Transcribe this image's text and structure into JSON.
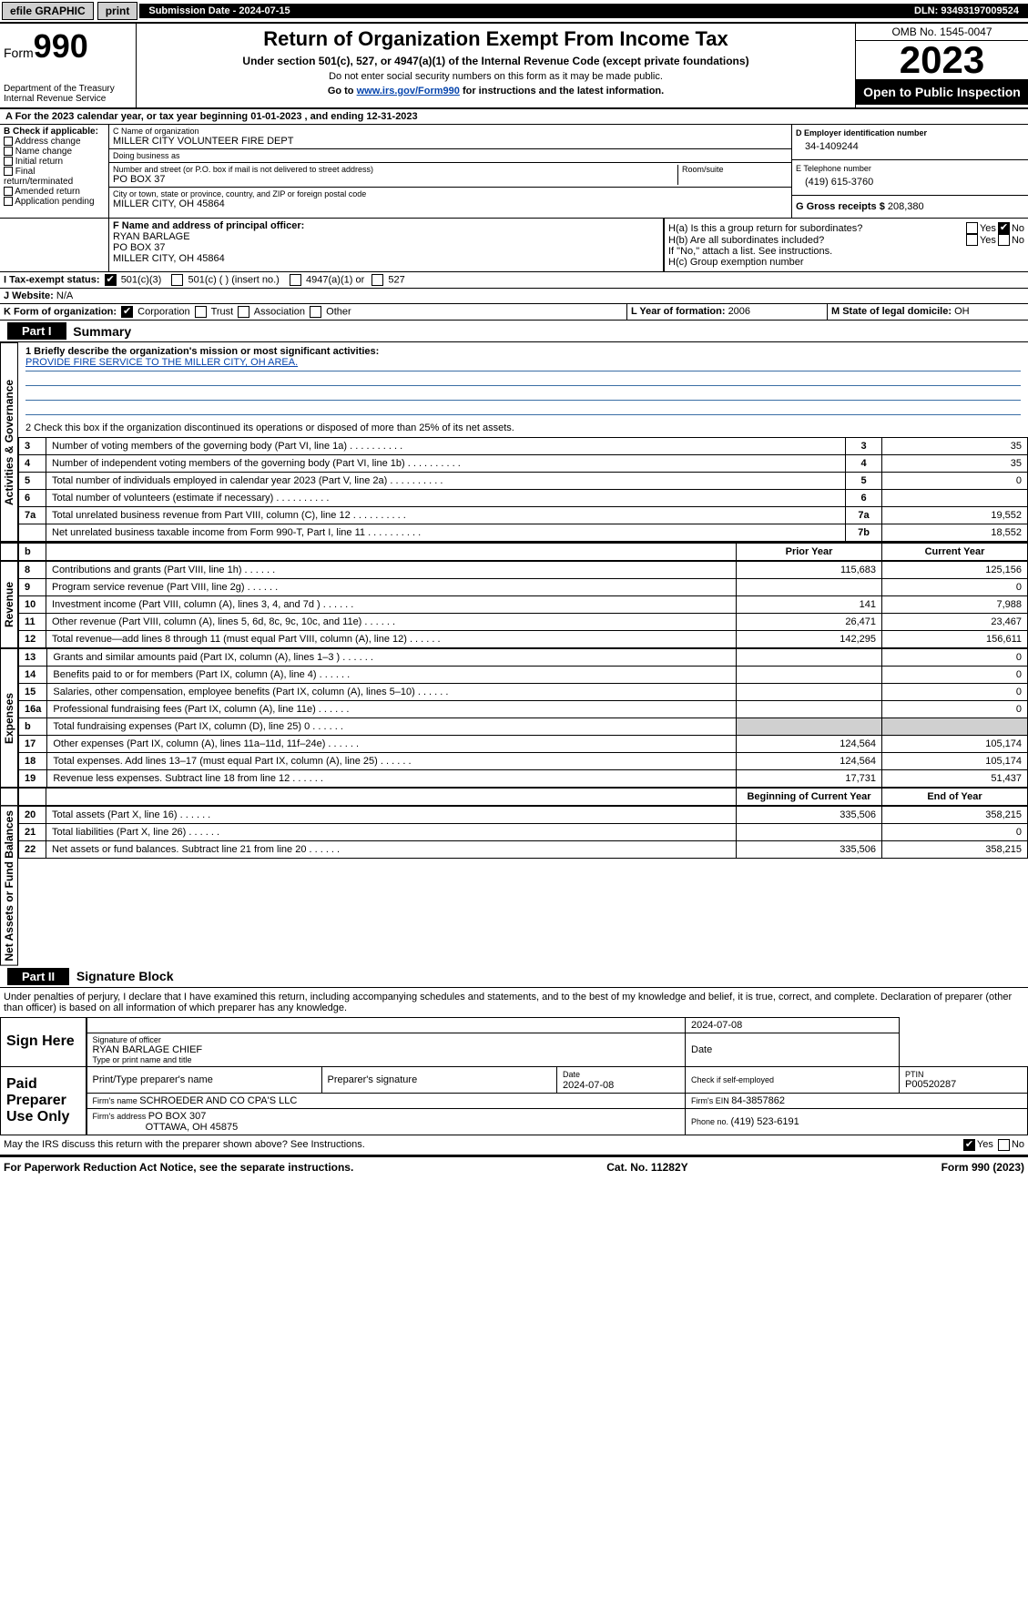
{
  "topbar": {
    "efile": "efile GRAPHIC",
    "print": "print",
    "submission_label": "Submission Date - ",
    "submission_date": "2024-07-15",
    "dln_label": "DLN: ",
    "dln": "93493197009524"
  },
  "header": {
    "form_prefix": "Form",
    "form_number": "990",
    "dept": "Department of the Treasury Internal Revenue Service",
    "title": "Return of Organization Exempt From Income Tax",
    "subtitle": "Under section 501(c), 527, or 4947(a)(1) of the Internal Revenue Code (except private foundations)",
    "note1": "Do not enter social security numbers on this form as it may be made public.",
    "note2_prefix": "Go to ",
    "note2_url": "www.irs.gov/Form990",
    "note2_suffix": " for instructions and the latest information.",
    "omb": "OMB No. 1545-0047",
    "year": "2023",
    "open": "Open to Public Inspection"
  },
  "section_a": {
    "text": "A For the 2023 calendar year, or tax year beginning ",
    "begin": "01-01-2023",
    "mid": " , and ending ",
    "end": "12-31-2023"
  },
  "box_b": {
    "label": "B Check if applicable:",
    "items": [
      "Address change",
      "Name change",
      "Initial return",
      "Final return/terminated",
      "Amended return",
      "Application pending"
    ]
  },
  "box_c": {
    "name_label": "C Name of organization",
    "name": "MILLER CITY VOLUNTEER FIRE DEPT",
    "dba_label": "Doing business as",
    "dba": "",
    "street_label": "Number and street (or P.O. box if mail is not delivered to street address)",
    "street": "PO BOX 37",
    "room_label": "Room/suite",
    "city_label": "City or town, state or province, country, and ZIP or foreign postal code",
    "city": "MILLER CITY, OH  45864"
  },
  "box_d": {
    "label": "D Employer identification number",
    "value": "34-1409244"
  },
  "box_e": {
    "label": "E Telephone number",
    "value": "(419) 615-3760"
  },
  "box_g": {
    "label": "G Gross receipts $ ",
    "value": "208,380"
  },
  "box_f": {
    "label": "F  Name and address of principal officer:",
    "name": "RYAN BARLAGE",
    "addr1": "PO BOX 37",
    "addr2": "MILLER CITY, OH  45864"
  },
  "box_h": {
    "ha_label": "H(a)  Is this a group return for subordinates?",
    "ha_yes": "Yes",
    "ha_no": "No",
    "ha_checked": "No",
    "hb_label": "H(b)  Are all subordinates included?",
    "hb_yes": "Yes",
    "hb_no": "No",
    "hb_note": "If \"No,\" attach a list. See instructions.",
    "hc_label": "H(c)  Group exemption number "
  },
  "box_i": {
    "label": "I   Tax-exempt status:",
    "opt1": "501(c)(3)",
    "opt1_checked": true,
    "opt2": "501(c) (  ) (insert no.)",
    "opt3": "4947(a)(1) or",
    "opt4": "527"
  },
  "box_j": {
    "label": "J   Website: ",
    "value": "N/A"
  },
  "box_k": {
    "label": "K Form of organization:",
    "opt1": "Corporation",
    "opt1_checked": true,
    "opt2": "Trust",
    "opt3": "Association",
    "opt4": "Other"
  },
  "box_l": {
    "label": "L Year of formation: ",
    "value": "2006"
  },
  "box_m": {
    "label": "M State of legal domicile: ",
    "value": "OH"
  },
  "part1": {
    "tag": "Part I",
    "title": "Summary",
    "q1_label": "1   Briefly describe the organization's mission or most significant activities:",
    "q1_value": "PROVIDE FIRE SERVICE TO THE MILLER CITY, OH AREA.",
    "q2": "2   Check this box      if the organization discontinued its operations or disposed of more than 25% of its net assets.",
    "sidebars": {
      "gov": "Activities & Governance",
      "rev": "Revenue",
      "exp": "Expenses",
      "net": "Net Assets or Fund Balances"
    },
    "header_b": "b",
    "header_prior": "Prior Year",
    "header_current": "Current Year",
    "header_boy": "Beginning of Current Year",
    "header_eoy": "End of Year",
    "rows_gov": [
      {
        "n": "3",
        "label": "Number of voting members of the governing body (Part VI, line 1a)",
        "box": "3",
        "val": "35"
      },
      {
        "n": "4",
        "label": "Number of independent voting members of the governing body (Part VI, line 1b)",
        "box": "4",
        "val": "35"
      },
      {
        "n": "5",
        "label": "Total number of individuals employed in calendar year 2023 (Part V, line 2a)",
        "box": "5",
        "val": "0"
      },
      {
        "n": "6",
        "label": "Total number of volunteers (estimate if necessary)",
        "box": "6",
        "val": ""
      },
      {
        "n": "7a",
        "label": "Total unrelated business revenue from Part VIII, column (C), line 12",
        "box": "7a",
        "val": "19,552"
      },
      {
        "n": "",
        "label": "Net unrelated business taxable income from Form 990-T, Part I, line 11",
        "box": "7b",
        "val": "18,552"
      }
    ],
    "rows_rev": [
      {
        "n": "8",
        "label": "Contributions and grants (Part VIII, line 1h)",
        "prior": "115,683",
        "curr": "125,156"
      },
      {
        "n": "9",
        "label": "Program service revenue (Part VIII, line 2g)",
        "prior": "",
        "curr": "0"
      },
      {
        "n": "10",
        "label": "Investment income (Part VIII, column (A), lines 3, 4, and 7d )",
        "prior": "141",
        "curr": "7,988"
      },
      {
        "n": "11",
        "label": "Other revenue (Part VIII, column (A), lines 5, 6d, 8c, 9c, 10c, and 11e)",
        "prior": "26,471",
        "curr": "23,467"
      },
      {
        "n": "12",
        "label": "Total revenue—add lines 8 through 11 (must equal Part VIII, column (A), line 12)",
        "prior": "142,295",
        "curr": "156,611"
      }
    ],
    "rows_exp": [
      {
        "n": "13",
        "label": "Grants and similar amounts paid (Part IX, column (A), lines 1–3 )",
        "prior": "",
        "curr": "0"
      },
      {
        "n": "14",
        "label": "Benefits paid to or for members (Part IX, column (A), line 4)",
        "prior": "",
        "curr": "0"
      },
      {
        "n": "15",
        "label": "Salaries, other compensation, employee benefits (Part IX, column (A), lines 5–10)",
        "prior": "",
        "curr": "0"
      },
      {
        "n": "16a",
        "label": "Professional fundraising fees (Part IX, column (A), line 11e)",
        "prior": "",
        "curr": "0"
      },
      {
        "n": "b",
        "label": "Total fundraising expenses (Part IX, column (D), line 25) 0",
        "prior": "GRAY",
        "curr": "GRAY"
      },
      {
        "n": "17",
        "label": "Other expenses (Part IX, column (A), lines 11a–11d, 11f–24e)",
        "prior": "124,564",
        "curr": "105,174"
      },
      {
        "n": "18",
        "label": "Total expenses. Add lines 13–17 (must equal Part IX, column (A), line 25)",
        "prior": "124,564",
        "curr": "105,174"
      },
      {
        "n": "19",
        "label": "Revenue less expenses. Subtract line 18 from line 12",
        "prior": "17,731",
        "curr": "51,437"
      }
    ],
    "rows_net": [
      {
        "n": "20",
        "label": "Total assets (Part X, line 16)",
        "prior": "335,506",
        "curr": "358,215"
      },
      {
        "n": "21",
        "label": "Total liabilities (Part X, line 26)",
        "prior": "",
        "curr": "0"
      },
      {
        "n": "22",
        "label": "Net assets or fund balances. Subtract line 21 from line 20",
        "prior": "335,506",
        "curr": "358,215"
      }
    ]
  },
  "part2": {
    "tag": "Part II",
    "title": "Signature Block",
    "declaration": "Under penalties of perjury, I declare that I have examined this return, including accompanying schedules and statements, and to the best of my knowledge and belief, it is true, correct, and complete. Declaration of preparer (other than officer) is based on all information of which preparer has any knowledge.",
    "sign_here": "Sign Here",
    "sig_date": "2024-07-08",
    "sig_officer_label": "Signature of officer",
    "sig_officer": "RYAN BARLAGE  CHIEF",
    "sig_officer_sub": "Type or print name and title",
    "date_label": "Date",
    "paid": "Paid Preparer Use Only",
    "prep_name_label": "Print/Type preparer's name",
    "prep_sig_label": "Preparer's signature",
    "prep_date_label": "Date",
    "prep_date": "2024-07-08",
    "self_emp_label": "Check       if self-employed",
    "ptin_label": "PTIN",
    "ptin": "P00520287",
    "firm_name_label": "Firm's name   ",
    "firm_name": "SCHROEDER AND CO CPA'S LLC",
    "firm_ein_label": "Firm's EIN ",
    "firm_ein": "84-3857862",
    "firm_addr_label": "Firm's address ",
    "firm_addr1": "PO BOX 307",
    "firm_addr2": "OTTAWA, OH  45875",
    "phone_label": "Phone no. ",
    "phone": "(419) 523-6191",
    "discuss": "May the IRS discuss this return with the preparer shown above? See Instructions.",
    "discuss_yes": "Yes",
    "discuss_no": "No",
    "discuss_checked": "Yes"
  },
  "footer": {
    "left": "For Paperwork Reduction Act Notice, see the separate instructions.",
    "mid": "Cat. No. 11282Y",
    "right_prefix": "Form ",
    "right_form": "990",
    "right_suffix": " (2023)"
  }
}
